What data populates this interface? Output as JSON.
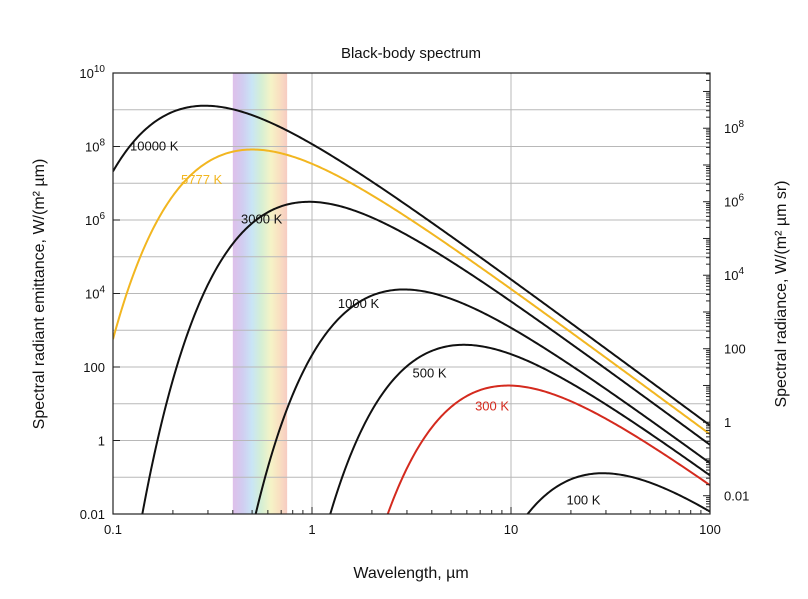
{
  "chart_data": {
    "type": "line",
    "title": "Black-body spectrum",
    "xlabel": "Wavelength, µm",
    "ylabel": "Spectral radiant emittance, W/(m² µm)",
    "ylabel_right": "Spectral radiance, W/(m² µm sr)",
    "x_scale": "log",
    "y_scale": "log",
    "xlim": [
      0.1,
      100
    ],
    "ylim": [
      0.01,
      10000000000
    ],
    "grid": true,
    "x_ticks": [
      {
        "value": 0.1,
        "label": "0.1"
      },
      {
        "value": 1,
        "label": "1"
      },
      {
        "value": 10,
        "label": "10"
      },
      {
        "value": 100,
        "label": "100"
      }
    ],
    "y_ticks_left": [
      {
        "value": 0.01,
        "label": "0.01",
        "exp": ""
      },
      {
        "value": 1,
        "label": "1",
        "exp": ""
      },
      {
        "value": 100,
        "label": "100",
        "exp": ""
      },
      {
        "value": 10000,
        "label": "10",
        "exp": "4"
      },
      {
        "value": 1000000,
        "label": "10",
        "exp": "6"
      },
      {
        "value": 100000000,
        "label": "10",
        "exp": "8"
      },
      {
        "value": 10000000000,
        "label": "10",
        "exp": "10"
      }
    ],
    "y_ticks_right_radiance": [
      {
        "value": 0.01,
        "label": "0.01",
        "exp": ""
      },
      {
        "value": 1,
        "label": "1",
        "exp": ""
      },
      {
        "value": 100,
        "label": "100",
        "exp": ""
      },
      {
        "value": 10000,
        "label": "10",
        "exp": "4"
      },
      {
        "value": 1000000,
        "label": "10",
        "exp": "6"
      },
      {
        "value": 100000000,
        "label": "10",
        "exp": "8"
      }
    ],
    "visible_band_um": [
      0.4,
      0.75
    ],
    "series": [
      {
        "name": "10000 K",
        "temperature_K": 10000,
        "color": "#111111"
      },
      {
        "name": "5777 K",
        "temperature_K": 5777,
        "color": "#f2b620"
      },
      {
        "name": "3000 K",
        "temperature_K": 3000,
        "color": "#111111"
      },
      {
        "name": "1000 K",
        "temperature_K": 1000,
        "color": "#111111"
      },
      {
        "name": "500 K",
        "temperature_K": 500,
        "color": "#111111"
      },
      {
        "name": "300 K",
        "temperature_K": 300,
        "color": "#d42a1e"
      },
      {
        "name": "100 K",
        "temperature_K": 100,
        "color": "#111111"
      }
    ]
  }
}
